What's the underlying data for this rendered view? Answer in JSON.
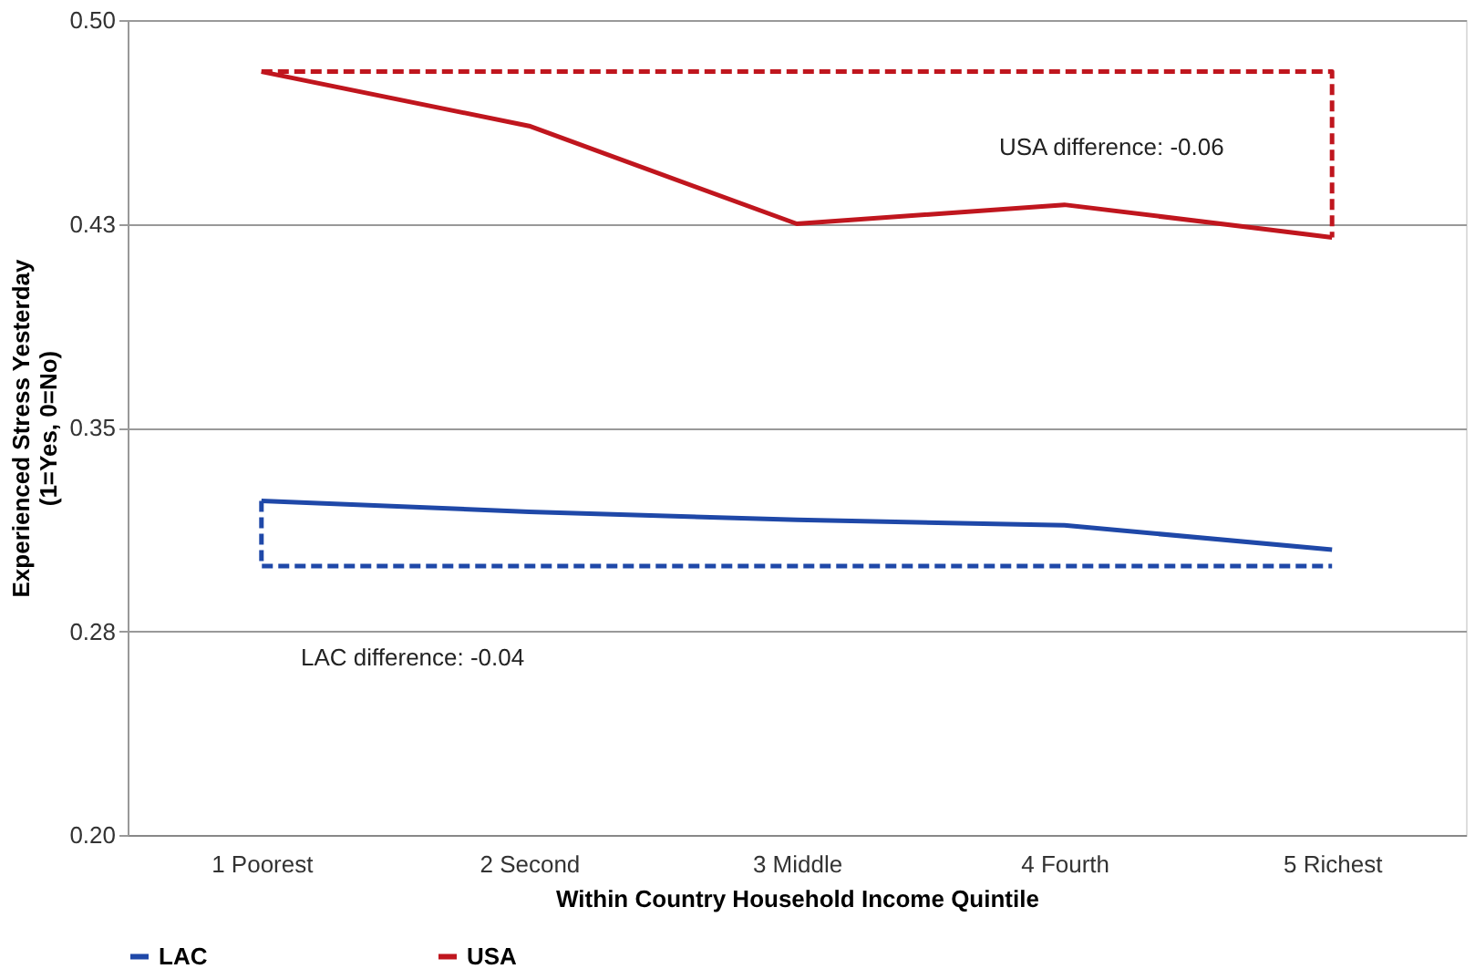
{
  "chart_data": {
    "type": "line",
    "xlabel": "Within Country Household Income Quintile",
    "ylabel": "Experienced Stress Yesterday\n(1=Yes, 0=No)",
    "categories": [
      "1 Poorest",
      "2 Second",
      "3 Middle",
      "4 Fourth",
      "5 Richest"
    ],
    "series": [
      {
        "name": "LAC",
        "color": "#1f48a8",
        "values": [
          0.323,
          0.319,
          0.316,
          0.314,
          0.305
        ]
      },
      {
        "name": "USA",
        "color": "#c0161e",
        "values": [
          0.481,
          0.461,
          0.425,
          0.432,
          0.42
        ]
      },
      {
        "color": "#1f48a8",
        "line_style": "dashed",
        "x": [
          "1 Poorest",
          "1 Poorest",
          "5 Richest"
        ],
        "values": [
          0.323,
          0.299,
          0.299
        ]
      },
      {
        "color": "#c0161e",
        "line_style": "dashed",
        "x": [
          "1 Poorest",
          "5 Richest",
          "5 Richest"
        ],
        "values": [
          0.481,
          0.481,
          0.42
        ]
      }
    ],
    "ylim": [
      0.2,
      0.5
    ],
    "yticks": [
      {
        "value": 0.2,
        "label": "0.20"
      },
      {
        "value": 0.275,
        "label": "0.28"
      },
      {
        "value": 0.35,
        "label": "0.35"
      },
      {
        "value": 0.425,
        "label": "0.43"
      },
      {
        "value": 0.5,
        "label": "0.50"
      }
    ],
    "grid": "y",
    "legend": "bottom",
    "line_style": "solid",
    "marker": "none",
    "annotations": [
      "USA difference: -0.06",
      "LAC difference: -0.04"
    ]
  }
}
